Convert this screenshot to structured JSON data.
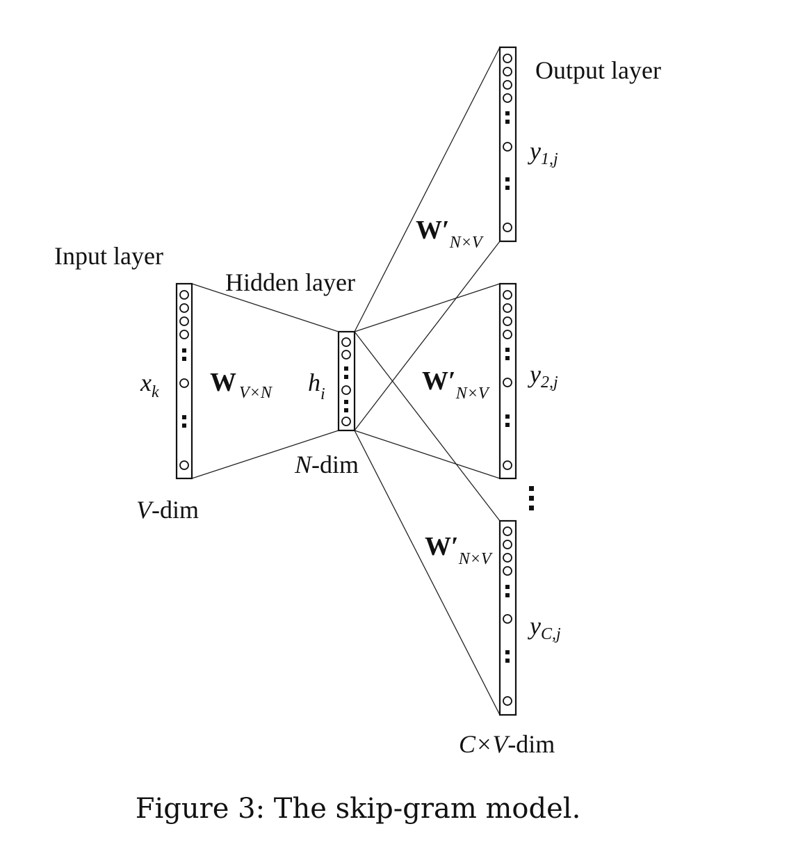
{
  "diagram": {
    "input_layer_label": "Input layer",
    "hidden_layer_label": "Hidden layer",
    "output_layer_label": "Output layer",
    "input_vector_symbol": "x",
    "input_vector_subscript": "k",
    "hidden_vector_symbol": "h",
    "hidden_vector_subscript": "i",
    "input_weight_symbol": "W",
    "input_weight_subscript": "V×N",
    "output_weight_symbol": "W′",
    "output_weight_subscript": "N×V",
    "input_dim_italic": "V",
    "input_dim_rest": "-dim",
    "hidden_dim_italic": "N",
    "hidden_dim_rest": "-dim",
    "output_dim_prefix": "C×",
    "output_dim_italic": "V",
    "output_dim_rest": "-dim",
    "outputs": [
      {
        "symbol": "y",
        "subscript": "1,j"
      },
      {
        "symbol": "y",
        "subscript": "2,j"
      },
      {
        "symbol": "y",
        "subscript": "C,j"
      }
    ]
  },
  "caption": "Figure 3: The skip-gram model."
}
